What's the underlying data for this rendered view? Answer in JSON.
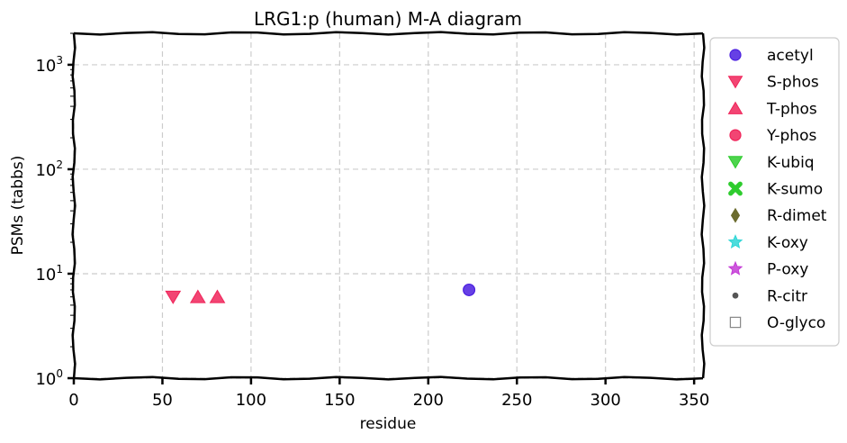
{
  "chart_data": {
    "type": "scatter",
    "title": "LRG1:p (human) M-A diagram",
    "xlabel": "residue",
    "ylabel": "PSMs (tabbs)",
    "xlim": [
      0,
      355
    ],
    "ylim": [
      1,
      2000
    ],
    "yscale": "log",
    "xticks": [
      0,
      50,
      100,
      150,
      200,
      250,
      300,
      350
    ],
    "yticks": [
      {
        "value": 1,
        "base": "10",
        "exp": "0"
      },
      {
        "value": 10,
        "base": "10",
        "exp": "1"
      },
      {
        "value": 100,
        "base": "10",
        "exp": "2"
      },
      {
        "value": 1000,
        "base": "10",
        "exp": "3"
      }
    ],
    "grid": true,
    "legend_position": "outside-right",
    "series": [
      {
        "name": "acetyl",
        "marker": "circle",
        "color": "#4b1fe0",
        "points": [
          {
            "x": 223,
            "y": 7
          }
        ]
      },
      {
        "name": "S-phos",
        "marker": "triangle-down",
        "color": "#f0245a",
        "points": [
          {
            "x": 56,
            "y": 6
          }
        ]
      },
      {
        "name": "T-phos",
        "marker": "triangle-up",
        "color": "#f0245a",
        "points": [
          {
            "x": 70,
            "y": 6
          },
          {
            "x": 81,
            "y": 6
          }
        ]
      },
      {
        "name": "Y-phos",
        "marker": "circle",
        "color": "#f0245a",
        "points": []
      },
      {
        "name": "K-ubiq",
        "marker": "triangle-down",
        "color": "#2ecc2e",
        "points": []
      },
      {
        "name": "K-sumo",
        "marker": "x",
        "color": "#2ecc2e",
        "points": []
      },
      {
        "name": "R-dimet",
        "marker": "diamond",
        "color": "#6b6b2e",
        "points": []
      },
      {
        "name": "K-oxy",
        "marker": "star",
        "color": "#2ed6d6",
        "points": []
      },
      {
        "name": "P-oxy",
        "marker": "star",
        "color": "#c43ad6",
        "points": []
      },
      {
        "name": "R-citr",
        "marker": "dot",
        "color": "#555555",
        "points": []
      },
      {
        "name": "O-glyco",
        "marker": "square-open",
        "color": "#888888",
        "points": []
      }
    ]
  }
}
